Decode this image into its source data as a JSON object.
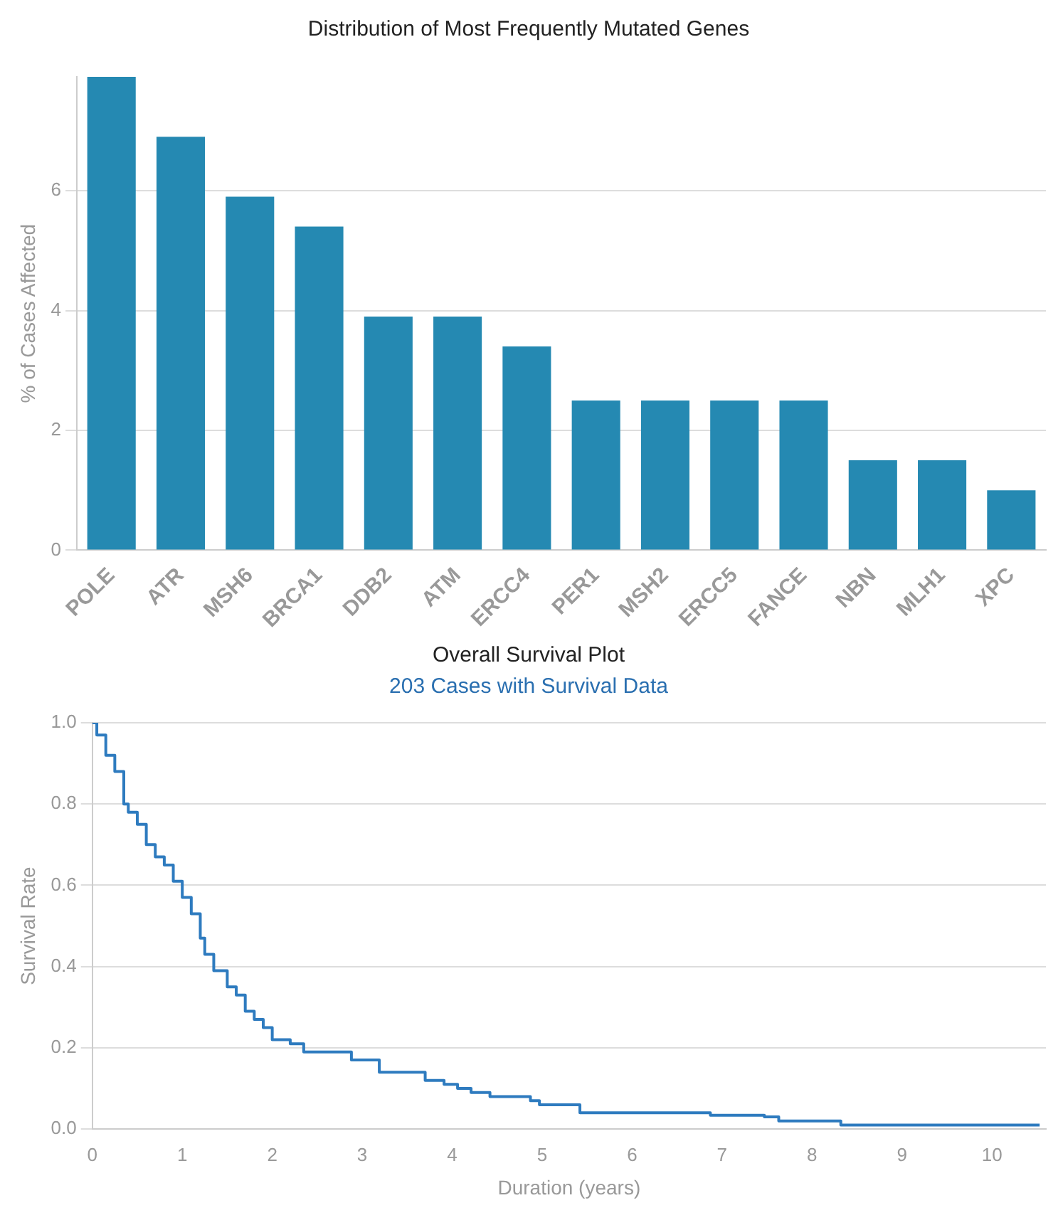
{
  "chart_data": [
    {
      "type": "bar",
      "title": "Distribution of Most Frequently Mutated Genes",
      "ylabel": "% of Cases Affected",
      "categories": [
        "POLE",
        "ATR",
        "MSH6",
        "BRCA1",
        "DDB2",
        "ATM",
        "ERCC4",
        "PER1",
        "MSH2",
        "ERCC5",
        "FANCE",
        "NBN",
        "MLH1",
        "XPC"
      ],
      "values": [
        7.9,
        6.9,
        5.9,
        5.4,
        3.9,
        3.9,
        3.4,
        2.5,
        2.5,
        2.5,
        2.5,
        1.5,
        1.5,
        1.0
      ],
      "color": "#2589b2",
      "ylim": [
        0,
        7.9
      ],
      "yticks": [
        0,
        2,
        4,
        6
      ],
      "grid": "y",
      "legend": false
    },
    {
      "type": "step",
      "title": "Overall Survival Plot",
      "subtitle": "203 Cases with Survival Data",
      "xlabel": "Duration (years)",
      "ylabel": "Survival Rate",
      "x": [
        0,
        0.05,
        0.15,
        0.25,
        0.35,
        0.4,
        0.5,
        0.6,
        0.7,
        0.8,
        0.9,
        1.0,
        1.1,
        1.2,
        1.25,
        1.35,
        1.5,
        1.6,
        1.7,
        1.8,
        1.9,
        2.0,
        2.2,
        2.35,
        2.88,
        3.19,
        3.7,
        3.91,
        4.06,
        4.21,
        4.42,
        4.87,
        4.97,
        5.42,
        6.87,
        7.47,
        7.63,
        8.32,
        10.53
      ],
      "series": [
        {
          "color": "#2e7bbf",
          "values": [
            1.0,
            0.97,
            0.92,
            0.88,
            0.8,
            0.78,
            0.75,
            0.7,
            0.67,
            0.65,
            0.61,
            0.57,
            0.53,
            0.47,
            0.43,
            0.39,
            0.35,
            0.33,
            0.29,
            0.27,
            0.25,
            0.22,
            0.21,
            0.19,
            0.17,
            0.14,
            0.12,
            0.11,
            0.1,
            0.09,
            0.08,
            0.07,
            0.06,
            0.04,
            0.034,
            0.03,
            0.02,
            0.01,
            0.01
          ]
        }
      ],
      "xlim": [
        0,
        10.6
      ],
      "xticks": [
        0,
        1,
        2,
        3,
        4,
        5,
        6,
        7,
        8,
        9,
        10
      ],
      "ylim": [
        0,
        1
      ],
      "yticks": [
        {
          "value": 0,
          "label": "0.0"
        },
        {
          "value": 0.2,
          "label": "0.2"
        },
        {
          "value": 0.4,
          "label": "0.4"
        },
        {
          "value": 0.6,
          "label": "0.6"
        },
        {
          "value": 0.8,
          "label": "0.8"
        },
        {
          "value": 1,
          "label": "1.0"
        }
      ],
      "grid": "y",
      "legend": false,
      "marker": "none"
    }
  ]
}
